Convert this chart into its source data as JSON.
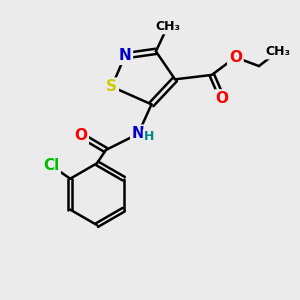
{
  "bg_color": "#ebebeb",
  "bond_color": "#000000",
  "bond_width": 1.8,
  "atom_colors": {
    "N": "#0000cc",
    "S": "#cccc00",
    "O": "#ff0000",
    "Cl": "#00bb00",
    "C": "#000000",
    "H": "#008888"
  },
  "font_size_atom": 11,
  "font_size_small": 9,
  "font_size_label": 9
}
